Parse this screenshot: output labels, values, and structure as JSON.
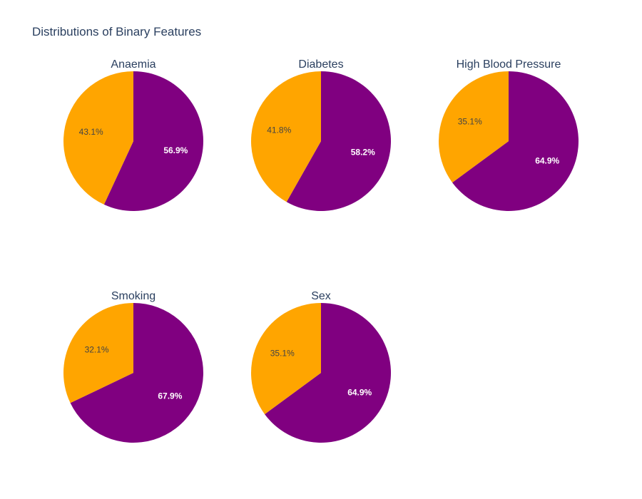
{
  "title": "Distributions of Binary Features",
  "colors": {
    "primary": "#800080",
    "secondary": "#ffa500"
  },
  "chart_data": [
    {
      "type": "pie",
      "title": "Anaemia",
      "values": [
        56.9,
        43.1
      ],
      "labels": [
        "56.9%",
        "43.1%"
      ],
      "colors": [
        "#800080",
        "#ffa500"
      ]
    },
    {
      "type": "pie",
      "title": "Diabetes",
      "values": [
        58.2,
        41.8
      ],
      "labels": [
        "58.2%",
        "41.8%"
      ],
      "colors": [
        "#800080",
        "#ffa500"
      ]
    },
    {
      "type": "pie",
      "title": "High Blood Pressure",
      "values": [
        64.9,
        35.1
      ],
      "labels": [
        "64.9%",
        "35.1%"
      ],
      "colors": [
        "#800080",
        "#ffa500"
      ]
    },
    {
      "type": "pie",
      "title": "Smoking",
      "values": [
        67.9,
        32.1
      ],
      "labels": [
        "67.9%",
        "32.1%"
      ],
      "colors": [
        "#800080",
        "#ffa500"
      ]
    },
    {
      "type": "pie",
      "title": "Sex",
      "values": [
        64.9,
        35.1
      ],
      "labels": [
        "64.9%",
        "35.1%"
      ],
      "colors": [
        "#800080",
        "#ffa500"
      ]
    }
  ]
}
